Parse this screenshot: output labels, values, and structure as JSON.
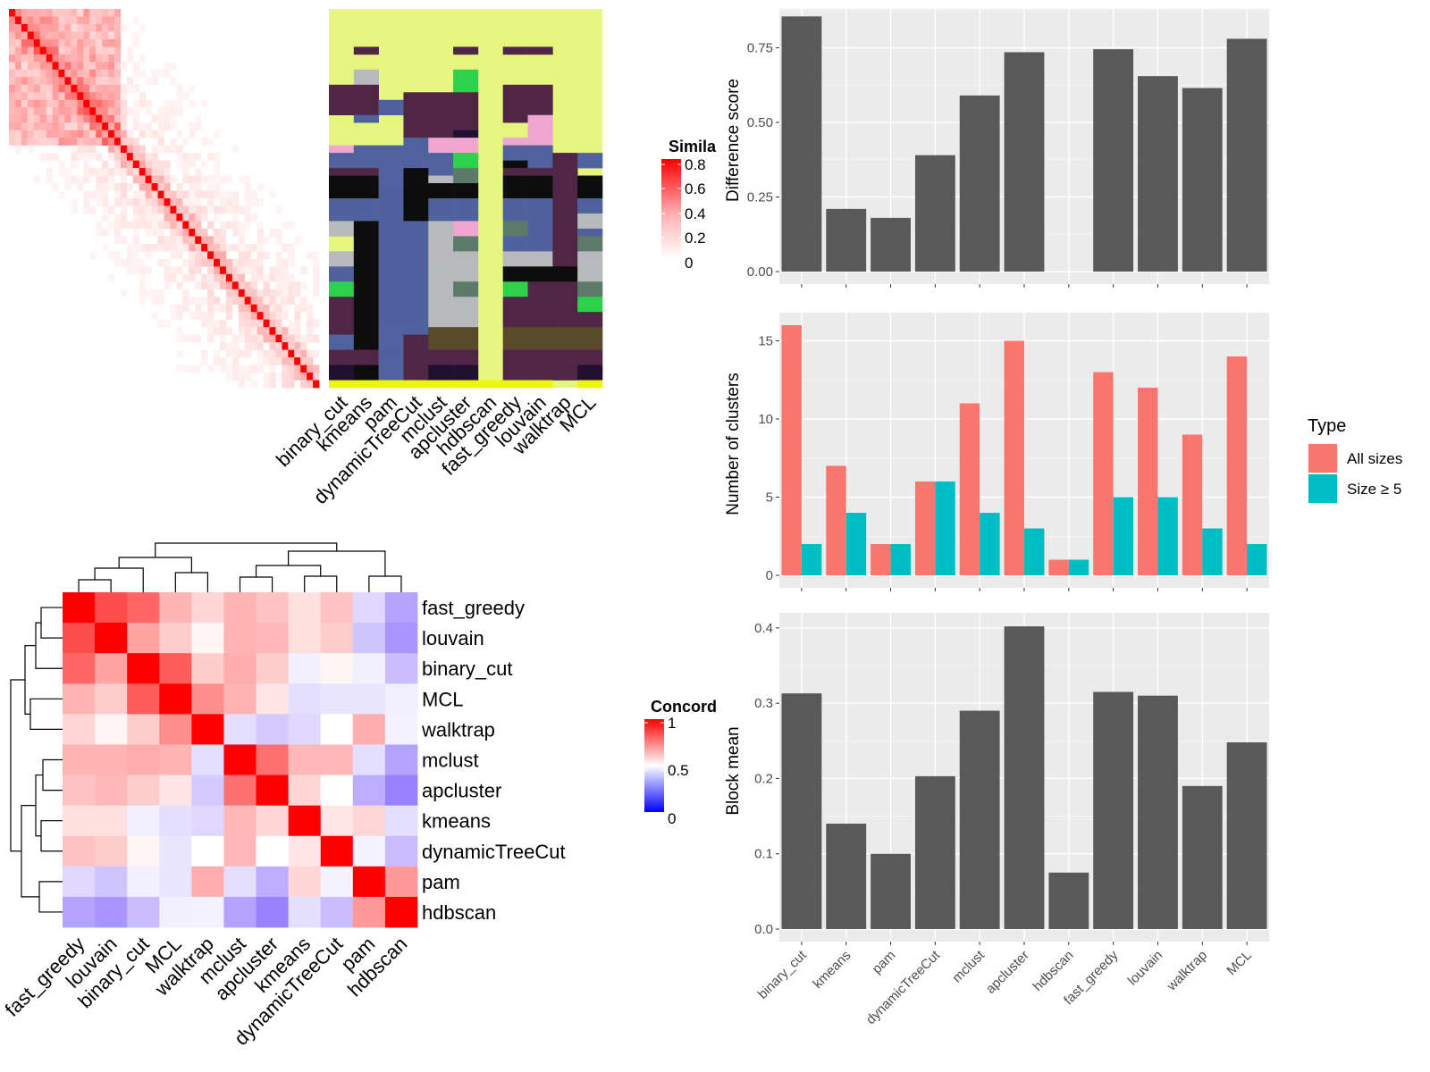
{
  "colors": {
    "panel_bg": "#ebebeb",
    "grid": "#ffffff",
    "bar_gray": "#595959",
    "all_sizes": "#f8766d",
    "size_ge5": "#00bfc4",
    "heat_high": "#ff0000",
    "heat_mid": "#ffffff",
    "heat_low": "#0000ff"
  },
  "similarity_heatmap": {
    "legend_title": "Simila",
    "legend_ticks": [
      "0.8",
      "0.6",
      "0.4",
      "0.2",
      "0"
    ],
    "n": 50
  },
  "cluster_assignments": {
    "method_labels": [
      "binary_cut",
      "kmeans",
      "pam",
      "dynamicTreeCut",
      "mclust",
      "apcluster",
      "hdbscan",
      "fast_greedy",
      "louvain",
      "walktrap",
      "MCL"
    ]
  },
  "concordance_heatmap": {
    "legend_title": "Concord",
    "legend_ticks": [
      "1",
      "0.5",
      "0"
    ],
    "order": [
      "fast_greedy",
      "louvain",
      "binary_cut",
      "MCL",
      "walktrap",
      "mclust",
      "apcluster",
      "kmeans",
      "dynamicTreeCut",
      "pam",
      "hdbscan"
    ],
    "matrix": [
      [
        1.0,
        0.85,
        0.8,
        0.65,
        0.58,
        0.65,
        0.62,
        0.56,
        0.62,
        0.38,
        0.22
      ],
      [
        0.85,
        1.0,
        0.68,
        0.6,
        0.52,
        0.65,
        0.64,
        0.56,
        0.6,
        0.32,
        0.18
      ],
      [
        0.8,
        0.68,
        1.0,
        0.82,
        0.6,
        0.66,
        0.6,
        0.45,
        0.52,
        0.45,
        0.3
      ],
      [
        0.65,
        0.6,
        0.82,
        1.0,
        0.72,
        0.65,
        0.55,
        0.4,
        0.42,
        0.42,
        0.45
      ],
      [
        0.58,
        0.52,
        0.6,
        0.72,
        1.0,
        0.4,
        0.34,
        0.38,
        0.5,
        0.66,
        0.46
      ],
      [
        0.65,
        0.65,
        0.66,
        0.65,
        0.4,
        1.0,
        0.78,
        0.64,
        0.64,
        0.4,
        0.22
      ],
      [
        0.62,
        0.64,
        0.6,
        0.55,
        0.34,
        0.78,
        1.0,
        0.58,
        0.5,
        0.25,
        0.12
      ],
      [
        0.56,
        0.56,
        0.45,
        0.4,
        0.38,
        0.64,
        0.58,
        1.0,
        0.55,
        0.58,
        0.4
      ],
      [
        0.62,
        0.6,
        0.52,
        0.42,
        0.5,
        0.64,
        0.5,
        0.55,
        1.0,
        0.46,
        0.3
      ],
      [
        0.38,
        0.32,
        0.45,
        0.42,
        0.66,
        0.4,
        0.25,
        0.58,
        0.46,
        1.0,
        0.7
      ],
      [
        0.22,
        0.18,
        0.3,
        0.45,
        0.46,
        0.22,
        0.12,
        0.4,
        0.3,
        0.7,
        1.0
      ]
    ]
  },
  "chart_data": [
    {
      "type": "bar",
      "categories": [
        "binary_cut",
        "kmeans",
        "pam",
        "dynamicTreeCut",
        "mclust",
        "apcluster",
        "hdbscan",
        "fast_greedy",
        "louvain",
        "walktrap",
        "MCL"
      ],
      "values": [
        0.855,
        0.21,
        0.18,
        0.39,
        0.59,
        0.735,
        0.0,
        0.745,
        0.655,
        0.615,
        0.78
      ],
      "ylabel": "Difference score",
      "ylim": [
        0,
        0.88
      ],
      "yticks": [
        "0.00",
        "0.25",
        "0.50",
        "0.75"
      ],
      "ytick_values": [
        0,
        0.25,
        0.5,
        0.75
      ]
    },
    {
      "type": "bar",
      "categories": [
        "binary_cut",
        "kmeans",
        "pam",
        "dynamicTreeCut",
        "mclust",
        "apcluster",
        "hdbscan",
        "fast_greedy",
        "louvain",
        "walktrap",
        "MCL"
      ],
      "series": [
        {
          "name": "All sizes",
          "values": [
            16,
            7,
            2,
            6,
            11,
            15,
            1,
            13,
            12,
            9,
            14
          ]
        },
        {
          "name": "Size ≥ 5",
          "values": [
            2,
            4,
            2,
            6,
            4,
            3,
            1,
            5,
            5,
            3,
            2
          ]
        }
      ],
      "ylabel": "Number of clusters",
      "ylim": [
        0,
        16.8
      ],
      "yticks": [
        "0",
        "5",
        "10",
        "15"
      ],
      "ytick_values": [
        0,
        5,
        10,
        15
      ],
      "legend": {
        "title": "Type",
        "position": "right"
      }
    },
    {
      "type": "bar",
      "categories": [
        "binary_cut",
        "kmeans",
        "pam",
        "dynamicTreeCut",
        "mclust",
        "apcluster",
        "hdbscan",
        "fast_greedy",
        "louvain",
        "walktrap",
        "MCL"
      ],
      "values": [
        0.313,
        0.14,
        0.1,
        0.203,
        0.29,
        0.402,
        0.075,
        0.315,
        0.31,
        0.19,
        0.248
      ],
      "ylabel": "Block mean",
      "ylim": [
        0,
        0.42
      ],
      "yticks": [
        "0.0",
        "0.1",
        "0.2",
        "0.3",
        "0.4"
      ],
      "ytick_values": [
        0,
        0.1,
        0.2,
        0.3,
        0.4
      ]
    }
  ]
}
